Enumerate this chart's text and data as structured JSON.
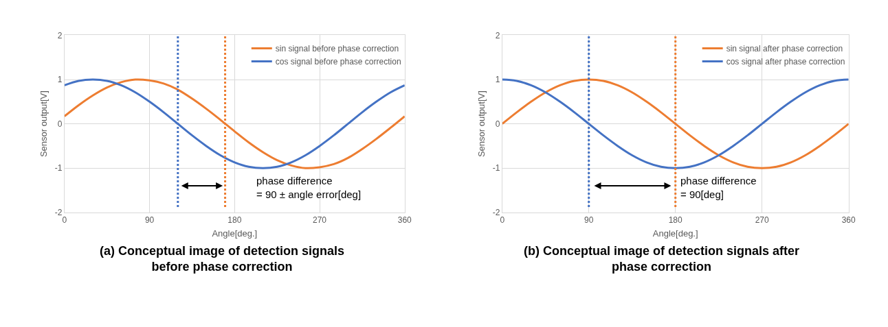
{
  "chart_data": [
    {
      "type": "line",
      "title": "(a) Conceptual image of detection signals\nbefore phase correction",
      "xlabel": "Angle[deg.]",
      "ylabel": "Sensor output[V]",
      "x": [
        0,
        15,
        30,
        45,
        60,
        75,
        90,
        105,
        120,
        135,
        150,
        165,
        180,
        195,
        210,
        225,
        240,
        255,
        270,
        285,
        300,
        315,
        330,
        345,
        360
      ],
      "series": [
        {
          "name": "sin signal before phase correction",
          "color": "#ed7d31",
          "values": [
            0.17,
            0.42,
            0.64,
            0.82,
            0.94,
            1.0,
            0.98,
            0.91,
            0.77,
            0.57,
            0.34,
            0.09,
            -0.17,
            -0.42,
            -0.64,
            -0.82,
            -0.94,
            -1.0,
            -0.98,
            -0.91,
            -0.77,
            -0.57,
            -0.34,
            -0.09,
            0.17
          ]
        },
        {
          "name": "cos signal before phase correction",
          "color": "#4472c4",
          "values": [
            0.87,
            0.97,
            1.0,
            0.97,
            0.87,
            0.71,
            0.5,
            0.26,
            0.0,
            -0.26,
            -0.5,
            -0.71,
            -0.87,
            -0.97,
            -1.0,
            -0.97,
            -0.87,
            -0.71,
            -0.5,
            -0.26,
            0.0,
            0.26,
            0.5,
            0.71,
            0.87
          ]
        }
      ],
      "xlim": [
        0,
        360
      ],
      "xticks": [
        0,
        90,
        180,
        270,
        360
      ],
      "ylim": [
        -2,
        2
      ],
      "yticks": [
        -2,
        -1,
        0,
        1,
        2
      ],
      "ref_lines": [
        {
          "axis": "x",
          "value": 120,
          "color": "#4472c4",
          "line_style": "dotted"
        },
        {
          "axis": "x",
          "value": 170,
          "color": "#ed7d31",
          "line_style": "dotted"
        }
      ],
      "annotations": [
        "phase difference\n= 90 ± angle error[deg]"
      ],
      "grid": true,
      "legend": "top right",
      "line_style": "solid",
      "marker": "none"
    },
    {
      "type": "line",
      "title": "(b) Conceptual image of detection signals after\nphase correction",
      "xlabel": "Angle[deg.]",
      "ylabel": "Sensor output[V]",
      "x": [
        0,
        15,
        30,
        45,
        60,
        75,
        90,
        105,
        120,
        135,
        150,
        165,
        180,
        195,
        210,
        225,
        240,
        255,
        270,
        285,
        300,
        315,
        330,
        345,
        360
      ],
      "series": [
        {
          "name": "sin signal after phase correction",
          "color": "#ed7d31",
          "values": [
            0.0,
            0.26,
            0.5,
            0.71,
            0.87,
            0.97,
            1.0,
            0.97,
            0.87,
            0.71,
            0.5,
            0.26,
            0.0,
            -0.26,
            -0.5,
            -0.71,
            -0.87,
            -0.97,
            -1.0,
            -0.97,
            -0.87,
            -0.71,
            -0.5,
            -0.26,
            0.0
          ]
        },
        {
          "name": "cos signal after phase correction",
          "color": "#4472c4",
          "values": [
            1.0,
            0.97,
            0.87,
            0.71,
            0.5,
            0.26,
            0.0,
            -0.26,
            -0.5,
            -0.71,
            -0.87,
            -0.97,
            -1.0,
            -0.97,
            -0.87,
            -0.71,
            -0.5,
            -0.26,
            0.0,
            0.26,
            0.5,
            0.71,
            0.87,
            0.97,
            1.0
          ]
        }
      ],
      "xlim": [
        0,
        360
      ],
      "xticks": [
        0,
        90,
        180,
        270,
        360
      ],
      "ylim": [
        -2,
        2
      ],
      "yticks": [
        -2,
        -1,
        0,
        1,
        2
      ],
      "ref_lines": [
        {
          "axis": "x",
          "value": 90,
          "color": "#4472c4",
          "line_style": "dotted"
        },
        {
          "axis": "x",
          "value": 180,
          "color": "#ed7d31",
          "line_style": "dotted"
        }
      ],
      "annotations": [
        "phase difference\n= 90[deg]"
      ],
      "grid": true,
      "legend": "top right",
      "line_style": "solid",
      "marker": "none"
    }
  ]
}
